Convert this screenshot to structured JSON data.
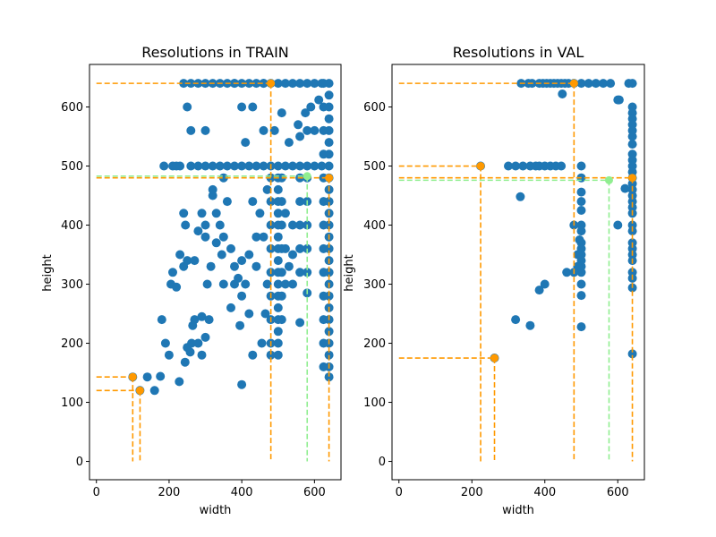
{
  "chart_data": [
    {
      "type": "scatter",
      "title": "Resolutions in TRAIN",
      "xlabel": "width",
      "ylabel": "height",
      "xlim": [
        -19,
        673
      ],
      "ylim": [
        -31,
        672
      ],
      "xticks": [
        0,
        200,
        400,
        600
      ],
      "yticks": [
        0,
        100,
        200,
        300,
        400,
        500,
        600
      ],
      "grid": false,
      "point_color": "#1f77b4",
      "points": [
        [
          240,
          640
        ],
        [
          260,
          640
        ],
        [
          280,
          640
        ],
        [
          300,
          640
        ],
        [
          320,
          640
        ],
        [
          340,
          640
        ],
        [
          360,
          640
        ],
        [
          380,
          640
        ],
        [
          400,
          640
        ],
        [
          420,
          640
        ],
        [
          440,
          640
        ],
        [
          460,
          640
        ],
        [
          480,
          640
        ],
        [
          500,
          640
        ],
        [
          520,
          640
        ],
        [
          540,
          640
        ],
        [
          560,
          640
        ],
        [
          580,
          640
        ],
        [
          600,
          640
        ],
        [
          620,
          640
        ],
        [
          640,
          640
        ],
        [
          640,
          620
        ],
        [
          640,
          600
        ],
        [
          640,
          580
        ],
        [
          640,
          560
        ],
        [
          640,
          540
        ],
        [
          640,
          520
        ],
        [
          640,
          500
        ],
        [
          640,
          480
        ],
        [
          640,
          460
        ],
        [
          640,
          440
        ],
        [
          640,
          420
        ],
        [
          640,
          400
        ],
        [
          640,
          380
        ],
        [
          640,
          360
        ],
        [
          640,
          340
        ],
        [
          640,
          320
        ],
        [
          640,
          300
        ],
        [
          640,
          280
        ],
        [
          640,
          260
        ],
        [
          640,
          240
        ],
        [
          640,
          220
        ],
        [
          640,
          200
        ],
        [
          640,
          180
        ],
        [
          640,
          160
        ],
        [
          640,
          143
        ],
        [
          625,
          640
        ],
        [
          625,
          600
        ],
        [
          625,
          560
        ],
        [
          625,
          520
        ],
        [
          625,
          480
        ],
        [
          625,
          440
        ],
        [
          625,
          400
        ],
        [
          625,
          360
        ],
        [
          625,
          320
        ],
        [
          625,
          280
        ],
        [
          625,
          240
        ],
        [
          625,
          200
        ],
        [
          625,
          160
        ],
        [
          612,
          612
        ],
        [
          600,
          560
        ],
        [
          590,
          600
        ],
        [
          575,
          590
        ],
        [
          580,
          560
        ],
        [
          560,
          550
        ],
        [
          555,
          570
        ],
        [
          230,
          500
        ],
        [
          260,
          500
        ],
        [
          280,
          500
        ],
        [
          300,
          500
        ],
        [
          320,
          500
        ],
        [
          340,
          500
        ],
        [
          360,
          500
        ],
        [
          380,
          500
        ],
        [
          400,
          500
        ],
        [
          420,
          500
        ],
        [
          440,
          500
        ],
        [
          460,
          500
        ],
        [
          480,
          500
        ],
        [
          500,
          500
        ],
        [
          520,
          500
        ],
        [
          540,
          500
        ],
        [
          560,
          500
        ],
        [
          580,
          500
        ],
        [
          600,
          500
        ],
        [
          620,
          500
        ],
        [
          186,
          500
        ],
        [
          210,
          500
        ],
        [
          500,
          480
        ],
        [
          500,
          460
        ],
        [
          500,
          440
        ],
        [
          500,
          420
        ],
        [
          500,
          400
        ],
        [
          500,
          380
        ],
        [
          500,
          360
        ],
        [
          500,
          340
        ],
        [
          500,
          320
        ],
        [
          500,
          300
        ],
        [
          500,
          280
        ],
        [
          500,
          260
        ],
        [
          500,
          240
        ],
        [
          500,
          220
        ],
        [
          500,
          200
        ],
        [
          500,
          180
        ],
        [
          510,
          480
        ],
        [
          510,
          440
        ],
        [
          510,
          400
        ],
        [
          510,
          360
        ],
        [
          510,
          320
        ],
        [
          510,
          280
        ],
        [
          510,
          240
        ],
        [
          480,
          480
        ],
        [
          480,
          440
        ],
        [
          480,
          400
        ],
        [
          480,
          360
        ],
        [
          480,
          320
        ],
        [
          480,
          280
        ],
        [
          480,
          240
        ],
        [
          480,
          200
        ],
        [
          480,
          180
        ],
        [
          580,
          480
        ],
        [
          580,
          440
        ],
        [
          580,
          400
        ],
        [
          580,
          360
        ],
        [
          580,
          320
        ],
        [
          580,
          285
        ],
        [
          560,
          480
        ],
        [
          560,
          440
        ],
        [
          560,
          400
        ],
        [
          560,
          360
        ],
        [
          560,
          320
        ],
        [
          540,
          400
        ],
        [
          540,
          350
        ],
        [
          540,
          300
        ],
        [
          520,
          420
        ],
        [
          520,
          360
        ],
        [
          520,
          300
        ],
        [
          100,
          143
        ],
        [
          120,
          120
        ],
        [
          140,
          143
        ],
        [
          160,
          120
        ],
        [
          176,
          144
        ],
        [
          180,
          240
        ],
        [
          190,
          200
        ],
        [
          200,
          180
        ],
        [
          205,
          300
        ],
        [
          210,
          320
        ],
        [
          220,
          295
        ],
        [
          228,
          135
        ],
        [
          230,
          350
        ],
        [
          240,
          330
        ],
        [
          244,
          168
        ],
        [
          250,
          193
        ],
        [
          258,
          185
        ],
        [
          262,
          200
        ],
        [
          265,
          230
        ],
        [
          270,
          240
        ],
        [
          280,
          200
        ],
        [
          290,
          180
        ],
        [
          290,
          245
        ],
        [
          300,
          210
        ],
        [
          300,
          380
        ],
        [
          305,
          300
        ],
        [
          310,
          240
        ],
        [
          320,
          450
        ],
        [
          330,
          420
        ],
        [
          340,
          400
        ],
        [
          350,
          380
        ],
        [
          360,
          440
        ],
        [
          370,
          260
        ],
        [
          380,
          300
        ],
        [
          390,
          310
        ],
        [
          400,
          280
        ],
        [
          400,
          340
        ],
        [
          410,
          300
        ],
        [
          420,
          350
        ],
        [
          430,
          440
        ],
        [
          440,
          330
        ],
        [
          450,
          420
        ],
        [
          460,
          380
        ],
        [
          470,
          300
        ],
        [
          470,
          460
        ],
        [
          380,
          640
        ],
        [
          400,
          600
        ],
        [
          430,
          600
        ],
        [
          460,
          640
        ],
        [
          490,
          560
        ],
        [
          510,
          590
        ],
        [
          530,
          540
        ],
        [
          410,
          540
        ],
        [
          460,
          560
        ],
        [
          300,
          560
        ],
        [
          320,
          460
        ],
        [
          350,
          480
        ],
        [
          260,
          560
        ],
        [
          240,
          420
        ],
        [
          290,
          420
        ],
        [
          250,
          340
        ],
        [
          245,
          400
        ],
        [
          300,
          400
        ],
        [
          400,
          130
        ],
        [
          430,
          180
        ],
        [
          455,
          200
        ],
        [
          560,
          235
        ],
        [
          250,
          600
        ],
        [
          220,
          500
        ],
        [
          330,
          370
        ],
        [
          380,
          330
        ],
        [
          420,
          250
        ],
        [
          395,
          230
        ],
        [
          350,
          300
        ],
        [
          270,
          340
        ],
        [
          280,
          390
        ],
        [
          315,
          330
        ],
        [
          345,
          350
        ],
        [
          370,
          360
        ],
        [
          440,
          380
        ],
        [
          465,
          250
        ],
        [
          530,
          330
        ]
      ],
      "guides": [
        {
          "color": "#ff9900",
          "x": 480,
          "y": 640
        },
        {
          "color": "#ff9900",
          "x": 640,
          "y": 480
        },
        {
          "color": "#ff9900",
          "x": 100,
          "y": 143
        },
        {
          "color": "#ff9900",
          "x": 120,
          "y": 120
        },
        {
          "color": "#90ee90",
          "x": 580,
          "y": 483
        }
      ]
    },
    {
      "type": "scatter",
      "title": "Resolutions in VAL",
      "xlabel": "width",
      "ylabel": "height",
      "xlim": [
        -19,
        673
      ],
      "ylim": [
        -31,
        672
      ],
      "xticks": [
        0,
        200,
        400,
        600
      ],
      "yticks": [
        0,
        100,
        200,
        300,
        400,
        500,
        600
      ],
      "grid": false,
      "point_color": "#1f77b4",
      "points": [
        [
          335,
          640
        ],
        [
          355,
          640
        ],
        [
          365,
          640
        ],
        [
          385,
          640
        ],
        [
          395,
          640
        ],
        [
          405,
          640
        ],
        [
          415,
          640
        ],
        [
          425,
          640
        ],
        [
          435,
          640
        ],
        [
          445,
          640
        ],
        [
          455,
          640
        ],
        [
          465,
          640
        ],
        [
          480,
          640
        ],
        [
          500,
          640
        ],
        [
          520,
          640
        ],
        [
          540,
          640
        ],
        [
          560,
          640
        ],
        [
          580,
          640
        ],
        [
          630,
          640
        ],
        [
          640,
          640
        ],
        [
          448,
          622
        ],
        [
          600,
          612
        ],
        [
          604,
          612
        ],
        [
          640,
          600
        ],
        [
          640,
          590
        ],
        [
          640,
          580
        ],
        [
          640,
          570
        ],
        [
          640,
          560
        ],
        [
          640,
          550
        ],
        [
          640,
          537
        ],
        [
          640,
          520
        ],
        [
          640,
          510
        ],
        [
          640,
          500
        ],
        [
          640,
          490
        ],
        [
          640,
          480
        ],
        [
          640,
          470
        ],
        [
          640,
          460
        ],
        [
          640,
          450
        ],
        [
          640,
          440
        ],
        [
          640,
          430
        ],
        [
          640,
          420
        ],
        [
          640,
          400
        ],
        [
          640,
          390
        ],
        [
          640,
          370
        ],
        [
          640,
          360
        ],
        [
          640,
          350
        ],
        [
          640,
          340
        ],
        [
          640,
          320
        ],
        [
          640,
          310
        ],
        [
          640,
          294
        ],
        [
          640,
          182
        ],
        [
          300,
          500
        ],
        [
          320,
          500
        ],
        [
          340,
          500
        ],
        [
          360,
          500
        ],
        [
          375,
          500
        ],
        [
          385,
          500
        ],
        [
          400,
          500
        ],
        [
          415,
          500
        ],
        [
          430,
          500
        ],
        [
          445,
          500
        ],
        [
          500,
          500
        ],
        [
          224,
          500
        ],
        [
          500,
          480
        ],
        [
          500,
          456
        ],
        [
          500,
          440
        ],
        [
          500,
          425
        ],
        [
          500,
          400
        ],
        [
          500,
          390
        ],
        [
          500,
          370
        ],
        [
          500,
          360
        ],
        [
          500,
          350
        ],
        [
          500,
          340
        ],
        [
          500,
          330
        ],
        [
          500,
          320
        ],
        [
          500,
          300
        ],
        [
          500,
          281
        ],
        [
          500,
          228
        ],
        [
          495,
          375
        ],
        [
          490,
          350
        ],
        [
          490,
          330
        ],
        [
          480,
          400
        ],
        [
          460,
          320
        ],
        [
          480,
          320
        ],
        [
          600,
          400
        ],
        [
          620,
          462
        ],
        [
          333,
          448
        ],
        [
          400,
          300
        ],
        [
          385,
          290
        ],
        [
          360,
          230
        ],
        [
          320,
          240
        ],
        [
          262,
          175
        ]
      ],
      "guides": [
        {
          "color": "#ff9900",
          "x": 480,
          "y": 640
        },
        {
          "color": "#ff9900",
          "x": 640,
          "y": 480
        },
        {
          "color": "#ff9900",
          "x": 224,
          "y": 500
        },
        {
          "color": "#ff9900",
          "x": 262,
          "y": 175
        },
        {
          "color": "#90ee90",
          "x": 576,
          "y": 476
        }
      ]
    }
  ]
}
